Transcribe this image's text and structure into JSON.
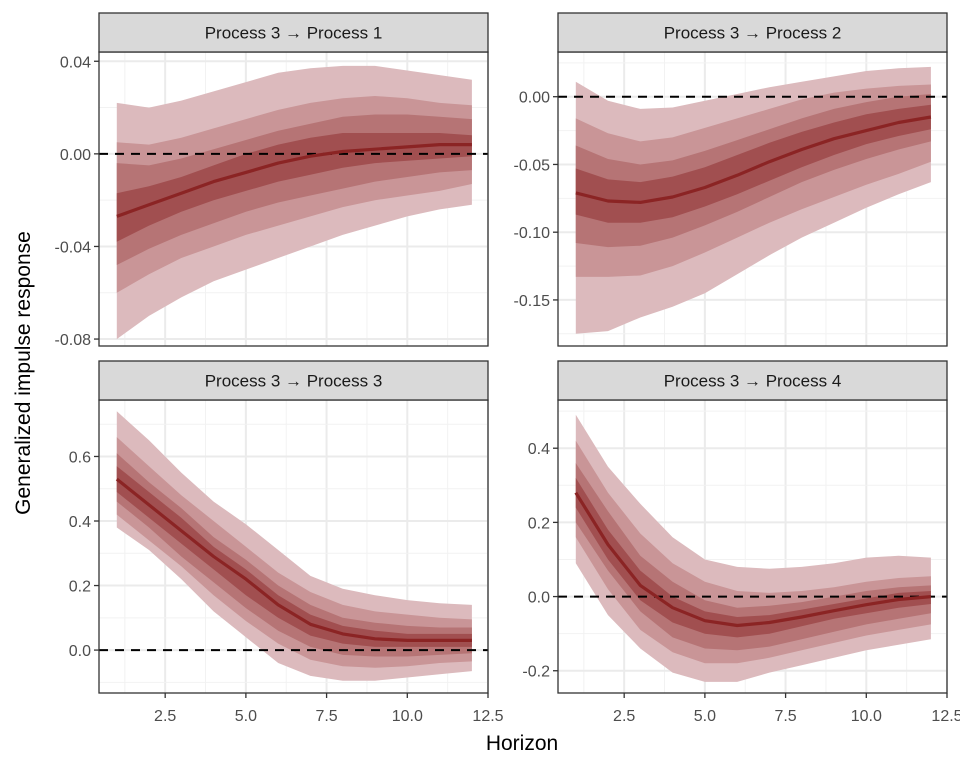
{
  "chart_data": {
    "type": "area",
    "title": "",
    "xlabel": "Horizon",
    "ylabel": "Generalized impulse response",
    "layout": "2x2 facets",
    "grid": true,
    "legend": "none",
    "x": [
      1,
      2,
      3,
      4,
      5,
      6,
      7,
      8,
      9,
      10,
      11,
      12
    ],
    "xlim": [
      0.45,
      12.5
    ],
    "xticks": [
      2.5,
      5.0,
      7.5,
      10.0,
      12.5
    ],
    "xtick_labels": [
      "2.5",
      "5.0",
      "7.5",
      "10.0",
      "12.5"
    ],
    "colors": {
      "band_outer": "#DCBABD",
      "band_2": "#C99597",
      "band_3": "#B67475",
      "band_inner": "#A14F50",
      "median": "#8B2424",
      "zero_line": "#000000",
      "strip_bg": "#D9D9D9"
    },
    "reference_line": {
      "y": 0,
      "style": "dashed"
    },
    "facets": [
      {
        "title": "Process 3 → Process 1",
        "ylim": [
          -0.083,
          0.044
        ],
        "yticks": [
          -0.08,
          -0.04,
          0.0,
          0.04
        ],
        "ytick_labels": [
          "-0.08",
          "-0.04",
          "0.00",
          "0.04"
        ],
        "median": [
          -0.027,
          -0.022,
          -0.017,
          -0.012,
          -0.008,
          -0.004,
          -0.001,
          0.001,
          0.002,
          0.003,
          0.004,
          0.004
        ],
        "bands": [
          {
            "name": "outer",
            "upper": [
              0.022,
              0.02,
              0.023,
              0.027,
              0.031,
              0.035,
              0.037,
              0.038,
              0.038,
              0.036,
              0.034,
              0.032
            ],
            "lower": [
              -0.08,
              -0.07,
              -0.062,
              -0.055,
              -0.05,
              -0.045,
              -0.04,
              -0.035,
              -0.031,
              -0.027,
              -0.024,
              -0.022
            ]
          },
          {
            "name": "band2",
            "upper": [
              0.005,
              0.004,
              0.007,
              0.011,
              0.015,
              0.019,
              0.022,
              0.024,
              0.025,
              0.024,
              0.022,
              0.021
            ],
            "lower": [
              -0.06,
              -0.052,
              -0.045,
              -0.04,
              -0.035,
              -0.031,
              -0.027,
              -0.023,
              -0.02,
              -0.018,
              -0.016,
              -0.013
            ]
          },
          {
            "name": "band3",
            "upper": [
              -0.004,
              -0.005,
              -0.002,
              0.002,
              0.006,
              0.01,
              0.013,
              0.016,
              0.017,
              0.017,
              0.016,
              0.015
            ],
            "lower": [
              -0.048,
              -0.041,
              -0.035,
              -0.03,
              -0.025,
              -0.021,
              -0.018,
              -0.015,
              -0.012,
              -0.01,
              -0.008,
              -0.007
            ]
          },
          {
            "name": "inner",
            "upper": [
              -0.017,
              -0.014,
              -0.01,
              -0.005,
              0.0,
              0.004,
              0.007,
              0.009,
              0.009,
              0.009,
              0.009,
              0.008
            ],
            "lower": [
              -0.038,
              -0.031,
              -0.025,
              -0.02,
              -0.016,
              -0.012,
              -0.009,
              -0.006,
              -0.004,
              -0.003,
              -0.002,
              -0.001
            ]
          }
        ]
      },
      {
        "title": "Process 3 → Process 2",
        "ylim": [
          -0.184,
          0.033
        ],
        "yticks": [
          -0.15,
          -0.1,
          -0.05,
          0.0
        ],
        "ytick_labels": [
          "-0.15",
          "-0.10",
          "-0.05",
          "0.00"
        ],
        "median": [
          -0.071,
          -0.077,
          -0.078,
          -0.074,
          -0.067,
          -0.058,
          -0.048,
          -0.039,
          -0.031,
          -0.025,
          -0.019,
          -0.015
        ],
        "bands": [
          {
            "name": "outer",
            "upper": [
              0.011,
              -0.003,
              -0.009,
              -0.008,
              -0.003,
              0.002,
              0.007,
              0.011,
              0.015,
              0.019,
              0.021,
              0.022
            ],
            "lower": [
              -0.175,
              -0.173,
              -0.163,
              -0.155,
              -0.145,
              -0.131,
              -0.117,
              -0.104,
              -0.093,
              -0.082,
              -0.072,
              -0.063
            ]
          },
          {
            "name": "band2",
            "upper": [
              -0.016,
              -0.027,
              -0.033,
              -0.03,
              -0.023,
              -0.016,
              -0.009,
              -0.002,
              0.003,
              0.006,
              0.008,
              0.009
            ],
            "lower": [
              -0.133,
              -0.133,
              -0.132,
              -0.125,
              -0.115,
              -0.104,
              -0.093,
              -0.083,
              -0.074,
              -0.065,
              -0.057,
              -0.048
            ]
          },
          {
            "name": "band3",
            "upper": [
              -0.036,
              -0.046,
              -0.05,
              -0.047,
              -0.04,
              -0.032,
              -0.024,
              -0.016,
              -0.009,
              -0.004,
              0.0,
              0.002
            ],
            "lower": [
              -0.108,
              -0.111,
              -0.11,
              -0.104,
              -0.095,
              -0.085,
              -0.074,
              -0.063,
              -0.054,
              -0.046,
              -0.039,
              -0.033
            ]
          },
          {
            "name": "inner",
            "upper": [
              -0.053,
              -0.061,
              -0.063,
              -0.059,
              -0.052,
              -0.043,
              -0.034,
              -0.026,
              -0.019,
              -0.013,
              -0.009,
              -0.006
            ],
            "lower": [
              -0.087,
              -0.093,
              -0.093,
              -0.089,
              -0.081,
              -0.072,
              -0.062,
              -0.052,
              -0.043,
              -0.035,
              -0.029,
              -0.024
            ]
          }
        ]
      },
      {
        "title": "Process 3 → Process 3",
        "ylim": [
          -0.133,
          0.775
        ],
        "yticks": [
          0.0,
          0.2,
          0.4,
          0.6
        ],
        "ytick_labels": [
          "0.0",
          "0.2",
          "0.4",
          "0.6"
        ],
        "median": [
          0.53,
          0.45,
          0.37,
          0.29,
          0.22,
          0.14,
          0.08,
          0.05,
          0.035,
          0.03,
          0.03,
          0.03
        ],
        "bands": [
          {
            "name": "outer",
            "upper": [
              0.74,
              0.65,
              0.55,
              0.46,
              0.39,
              0.31,
              0.23,
              0.19,
              0.17,
              0.155,
              0.145,
              0.14
            ],
            "lower": [
              0.38,
              0.31,
              0.22,
              0.12,
              0.04,
              -0.04,
              -0.08,
              -0.095,
              -0.095,
              -0.085,
              -0.075,
              -0.065
            ]
          },
          {
            "name": "band2",
            "upper": [
              0.66,
              0.57,
              0.48,
              0.4,
              0.32,
              0.24,
              0.18,
              0.14,
              0.12,
              0.11,
              0.1,
              0.095
            ],
            "lower": [
              0.42,
              0.34,
              0.26,
              0.17,
              0.09,
              0.02,
              -0.03,
              -0.05,
              -0.055,
              -0.05,
              -0.04,
              -0.035
            ]
          },
          {
            "name": "band3",
            "upper": [
              0.61,
              0.52,
              0.44,
              0.35,
              0.28,
              0.2,
              0.14,
              0.1,
              0.085,
              0.075,
              0.07,
              0.07
            ],
            "lower": [
              0.46,
              0.38,
              0.29,
              0.21,
              0.13,
              0.06,
              0.01,
              -0.015,
              -0.02,
              -0.02,
              -0.015,
              -0.01
            ]
          },
          {
            "name": "inner",
            "upper": [
              0.57,
              0.49,
              0.41,
              0.32,
              0.25,
              0.17,
              0.11,
              0.075,
              0.06,
              0.05,
              0.05,
              0.05
            ],
            "lower": [
              0.49,
              0.41,
              0.33,
              0.25,
              0.17,
              0.1,
              0.045,
              0.02,
              0.01,
              0.01,
              0.01,
              0.01
            ]
          }
        ]
      },
      {
        "title": "Process 3 → Process 4",
        "ylim": [
          -0.26,
          0.53
        ],
        "yticks": [
          -0.2,
          0.0,
          0.2,
          0.4
        ],
        "ytick_labels": [
          "-0.2",
          "0.0",
          "0.2",
          "0.4"
        ],
        "median": [
          0.28,
          0.14,
          0.03,
          -0.03,
          -0.065,
          -0.078,
          -0.07,
          -0.055,
          -0.038,
          -0.022,
          -0.008,
          0.0
        ],
        "bands": [
          {
            "name": "outer",
            "upper": [
              0.49,
              0.35,
              0.25,
              0.16,
              0.1,
              0.08,
              0.075,
              0.08,
              0.09,
              0.105,
              0.11,
              0.105
            ],
            "lower": [
              0.09,
              -0.05,
              -0.14,
              -0.205,
              -0.23,
              -0.23,
              -0.205,
              -0.185,
              -0.165,
              -0.145,
              -0.13,
              -0.115
            ]
          },
          {
            "name": "band2",
            "upper": [
              0.42,
              0.28,
              0.17,
              0.09,
              0.04,
              0.015,
              0.01,
              0.015,
              0.025,
              0.04,
              0.05,
              0.055
            ],
            "lower": [
              0.16,
              0.02,
              -0.09,
              -0.15,
              -0.18,
              -0.18,
              -0.165,
              -0.145,
              -0.125,
              -0.105,
              -0.09,
              -0.075
            ]
          },
          {
            "name": "band3",
            "upper": [
              0.36,
              0.23,
              0.11,
              0.04,
              -0.01,
              -0.03,
              -0.025,
              -0.015,
              0.0,
              0.015,
              0.025,
              0.03
            ],
            "lower": [
              0.2,
              0.07,
              -0.04,
              -0.11,
              -0.14,
              -0.145,
              -0.135,
              -0.115,
              -0.095,
              -0.075,
              -0.06,
              -0.045
            ]
          },
          {
            "name": "inner",
            "upper": [
              0.32,
              0.18,
              0.07,
              0.0,
              -0.04,
              -0.055,
              -0.05,
              -0.035,
              -0.02,
              -0.005,
              0.01,
              0.015
            ],
            "lower": [
              0.24,
              0.1,
              -0.01,
              -0.07,
              -0.1,
              -0.11,
              -0.1,
              -0.08,
              -0.06,
              -0.045,
              -0.03,
              -0.02
            ]
          }
        ]
      }
    ]
  }
}
